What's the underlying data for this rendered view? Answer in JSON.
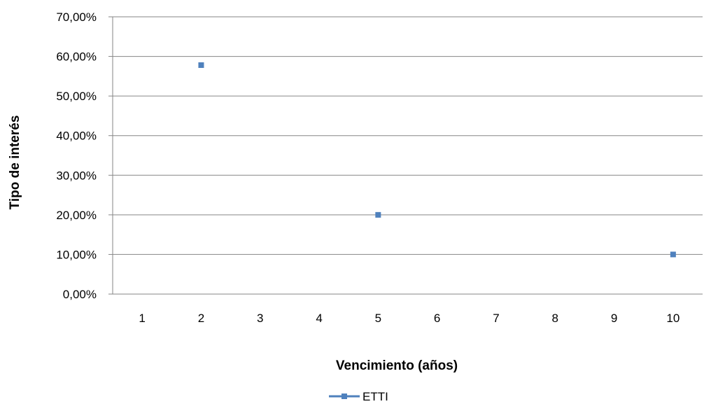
{
  "chart_data": {
    "type": "line",
    "categories": [
      "1",
      "2",
      "3",
      "4",
      "5",
      "6",
      "7",
      "8",
      "9",
      "10"
    ],
    "series": [
      {
        "name": "ETTI",
        "values": [
          null,
          0.578,
          null,
          null,
          0.2,
          null,
          null,
          null,
          null,
          0.1
        ],
        "color": "#4F81BD"
      }
    ],
    "xlabel": "Vencimiento (años)",
    "ylabel": "Tipo de interés",
    "ylim": [
      0,
      0.7
    ],
    "yticks": [
      0,
      0.1,
      0.2,
      0.3,
      0.4,
      0.5,
      0.6,
      0.7
    ],
    "ytick_labels": [
      "0,00%",
      "10,00%",
      "20,00%",
      "30,00%",
      "40,00%",
      "50,00%",
      "60,00%",
      "70,00%"
    ],
    "grid": true,
    "legend": "bottom"
  },
  "colors": {
    "series": "#4F81BD",
    "gridline": "#868686",
    "axis": "#868686"
  }
}
